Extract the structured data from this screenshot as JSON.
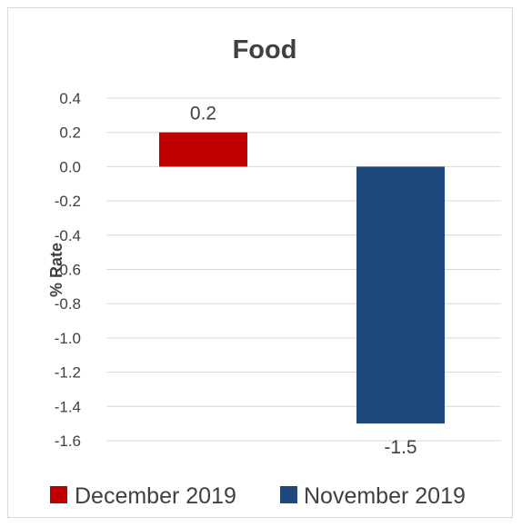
{
  "chart_data": {
    "type": "bar",
    "title": "Food",
    "ylabel": "% Rate",
    "xlabel": "",
    "ylim": [
      -1.6,
      0.4
    ],
    "ytick_step": 0.2,
    "yticks": [
      "0.4",
      "0.2",
      "0.0",
      "-0.2",
      "-0.4",
      "-0.6",
      "-0.8",
      "-1.0",
      "-1.2",
      "-1.4",
      "-1.6"
    ],
    "grid": true,
    "legend_position": "bottom",
    "series": [
      {
        "name": "December 2019",
        "value": 0.2,
        "label": "0.2",
        "color": "#c00000"
      },
      {
        "name": "November 2019",
        "value": -1.5,
        "label": "-1.5",
        "color": "#1f497d"
      }
    ]
  }
}
